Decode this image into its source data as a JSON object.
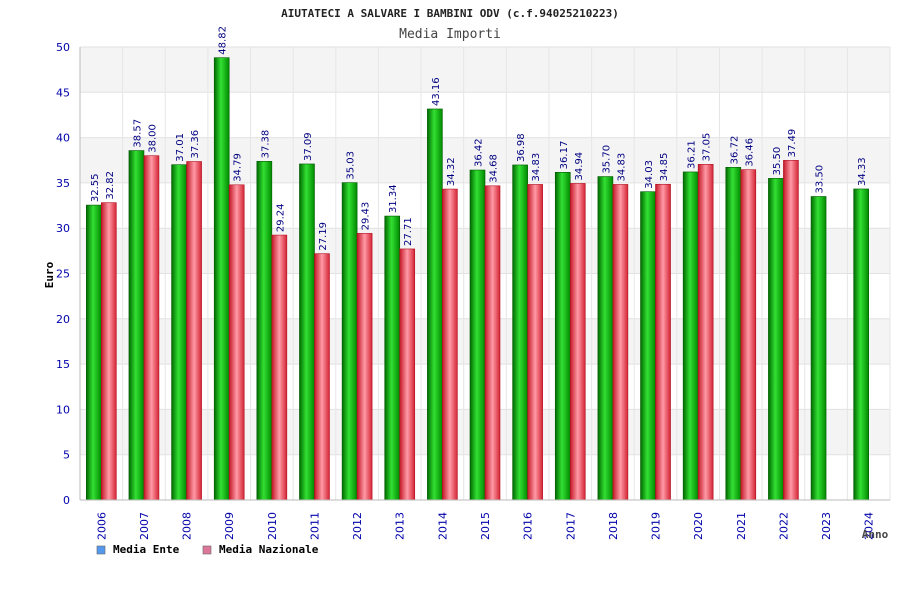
{
  "chart_data": {
    "type": "bar",
    "title": "AIUTATECI A SALVARE I BAMBINI ODV (c.f.94025210223)",
    "subtitle": "Media Importi",
    "xlabel": "Anno",
    "ylabel": "Euro",
    "ylim": [
      0,
      50
    ],
    "yticks": [
      0,
      5,
      10,
      15,
      20,
      25,
      30,
      35,
      40,
      45,
      50
    ],
    "categories": [
      "2006",
      "2007",
      "2008",
      "2009",
      "2010",
      "2011",
      "2012",
      "2013",
      "2014",
      "2015",
      "2016",
      "2017",
      "2018",
      "2019",
      "2020",
      "2021",
      "2022",
      "2023",
      "2024"
    ],
    "series": [
      {
        "name": "Media Ente",
        "color": "#00b000",
        "legend_color": "#5599ee",
        "values": [
          32.55,
          38.57,
          37.01,
          48.82,
          37.38,
          37.09,
          35.03,
          31.34,
          43.16,
          36.42,
          36.98,
          36.17,
          35.7,
          34.03,
          36.21,
          36.72,
          35.5,
          33.5,
          34.33
        ],
        "labels": [
          "32.55",
          "38.57",
          "37.01",
          "48.82",
          "37.38",
          "37.09",
          "35.03",
          "31.34",
          "43.16",
          "36.42",
          "36.98",
          "36.17",
          "35.70",
          "34.03",
          "36.21",
          "36.72",
          "35.50",
          "33.50",
          "34.33"
        ]
      },
      {
        "name": "Media Nazionale",
        "color": "#e83040",
        "legend_color": "#dd7799",
        "values": [
          32.82,
          38.0,
          37.36,
          34.79,
          29.24,
          27.19,
          29.43,
          27.71,
          34.32,
          34.68,
          34.83,
          34.94,
          34.83,
          34.85,
          37.05,
          36.46,
          37.49,
          null,
          null
        ],
        "labels": [
          "32.82",
          "38.00",
          "37.36",
          "34.79",
          "29.24",
          "27.19",
          "29.43",
          "27.71",
          "34.32",
          "34.68",
          "34.83",
          "34.94",
          "34.83",
          "34.85",
          "37.05",
          "36.46",
          "37.49",
          null,
          null
        ]
      }
    ],
    "grid": true,
    "legend_position": "bottom-left"
  },
  "colors": {
    "band_light": "#f4f4f4",
    "band_white": "#ffffff",
    "axis_text": "#0000aa",
    "label_text": "#000080",
    "title_text": "#222222"
  }
}
